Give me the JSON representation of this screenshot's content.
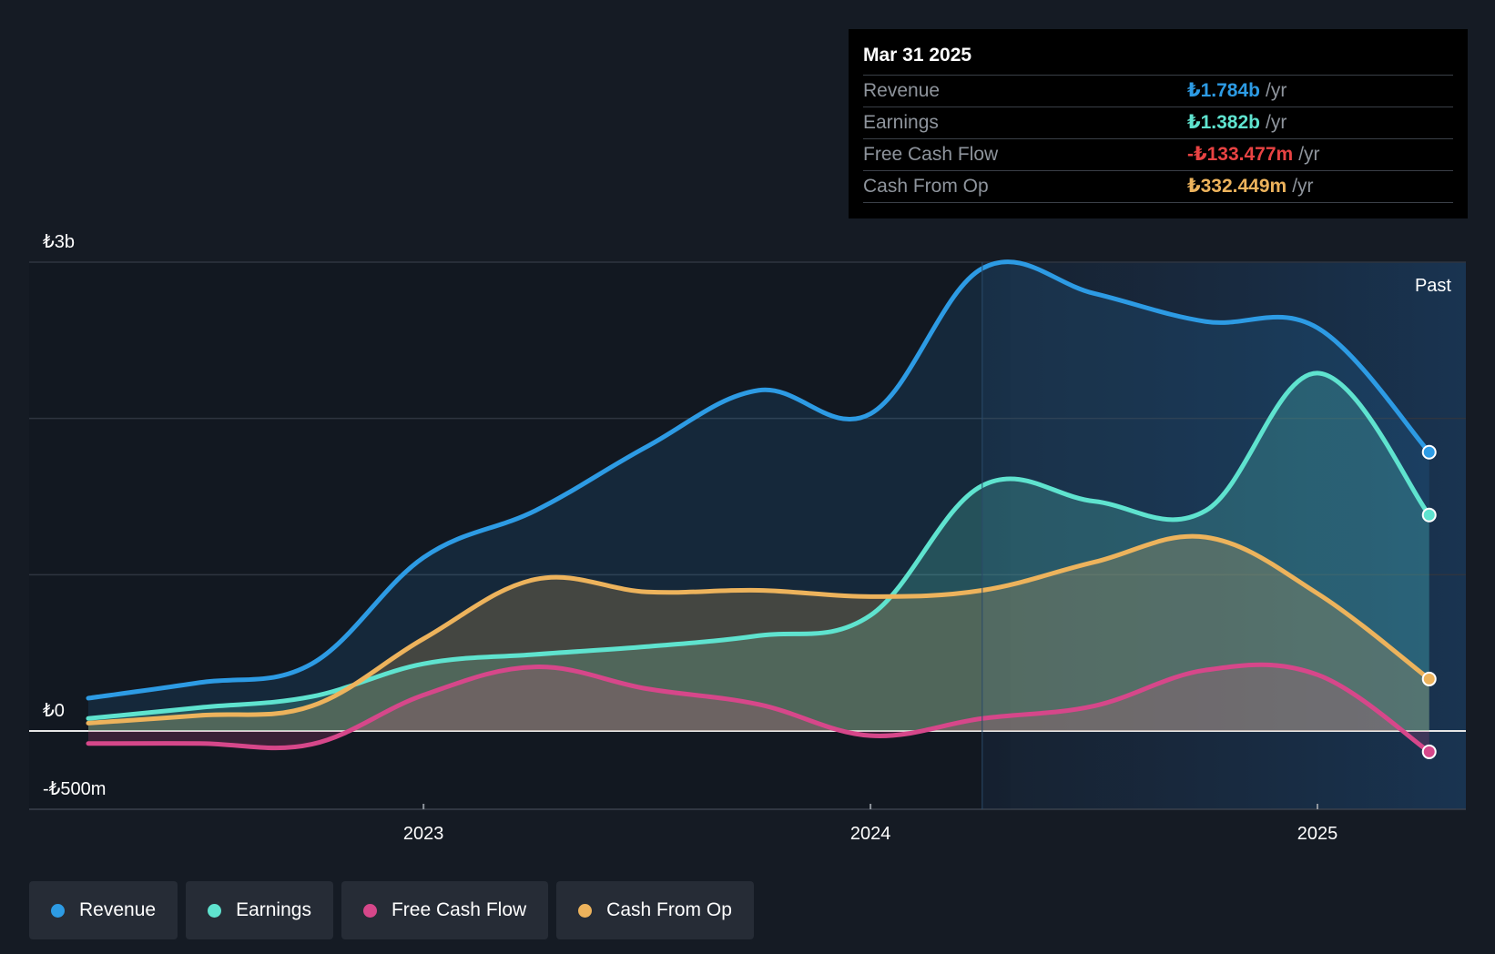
{
  "tooltip": {
    "date": "Mar 31 2025",
    "rows": [
      {
        "label": "Revenue",
        "value": "₺1.784b",
        "unit": "/yr",
        "color": "#2d9be4"
      },
      {
        "label": "Earnings",
        "value": "₺1.382b",
        "unit": "/yr",
        "color": "#5fe3cf"
      },
      {
        "label": "Free Cash Flow",
        "value": "-₺133.477m",
        "unit": "/yr",
        "color": "#e84343"
      },
      {
        "label": "Cash From Op",
        "value": "₺332.449m",
        "unit": "/yr",
        "color": "#edb35c"
      }
    ]
  },
  "chart_data": {
    "type": "area",
    "x_unit": "year",
    "y_unit": "TRY millions",
    "xlim": [
      2022.17,
      2025.25
    ],
    "ylim": [
      -500,
      3000
    ],
    "y_tick_labels": [
      {
        "value": 3000,
        "label": "₺3b"
      },
      {
        "value": 0,
        "label": "₺0"
      },
      {
        "value": -500,
        "label": "-₺500m"
      }
    ],
    "x_tick_labels": [
      {
        "value": 2023,
        "label": "2023"
      },
      {
        "value": 2024,
        "label": "2024"
      },
      {
        "value": 2025,
        "label": "2025"
      }
    ],
    "gridlines": [
      3000,
      2000,
      1000,
      0
    ],
    "past_start": 2024.25,
    "past_label": "Past",
    "series": [
      {
        "name": "Revenue",
        "color": "#2d9be4",
        "points": [
          [
            2022.25,
            210
          ],
          [
            2022.5,
            310
          ],
          [
            2022.75,
            430
          ],
          [
            2023.0,
            1110
          ],
          [
            2023.25,
            1410
          ],
          [
            2023.5,
            1820
          ],
          [
            2023.75,
            2180
          ],
          [
            2024.0,
            2030
          ],
          [
            2024.25,
            2960
          ],
          [
            2024.5,
            2800
          ],
          [
            2024.75,
            2620
          ],
          [
            2025.0,
            2580
          ],
          [
            2025.25,
            1784
          ]
        ]
      },
      {
        "name": "Earnings",
        "color": "#5fe3cf",
        "points": [
          [
            2022.25,
            80
          ],
          [
            2022.5,
            150
          ],
          [
            2022.75,
            220
          ],
          [
            2023.0,
            430
          ],
          [
            2023.25,
            490
          ],
          [
            2023.5,
            540
          ],
          [
            2023.75,
            610
          ],
          [
            2024.0,
            740
          ],
          [
            2024.25,
            1570
          ],
          [
            2024.5,
            1470
          ],
          [
            2024.75,
            1410
          ],
          [
            2025.0,
            2290
          ],
          [
            2025.25,
            1382
          ]
        ]
      },
      {
        "name": "Free Cash Flow",
        "color": "#d6478a",
        "points": [
          [
            2022.25,
            -80
          ],
          [
            2022.5,
            -80
          ],
          [
            2022.75,
            -85
          ],
          [
            2023.0,
            230
          ],
          [
            2023.25,
            410
          ],
          [
            2023.5,
            270
          ],
          [
            2023.75,
            170
          ],
          [
            2024.0,
            -30
          ],
          [
            2024.25,
            80
          ],
          [
            2024.5,
            160
          ],
          [
            2024.75,
            390
          ],
          [
            2025.0,
            360
          ],
          [
            2025.25,
            -133.477
          ]
        ]
      },
      {
        "name": "Cash From Op",
        "color": "#edb35c",
        "points": [
          [
            2022.25,
            50
          ],
          [
            2022.5,
            100
          ],
          [
            2022.75,
            160
          ],
          [
            2023.0,
            590
          ],
          [
            2023.25,
            970
          ],
          [
            2023.5,
            890
          ],
          [
            2023.75,
            900
          ],
          [
            2024.0,
            860
          ],
          [
            2024.25,
            900
          ],
          [
            2024.5,
            1080
          ],
          [
            2024.75,
            1240
          ],
          [
            2025.0,
            880
          ],
          [
            2025.25,
            332.449
          ]
        ]
      }
    ]
  },
  "legend": [
    {
      "label": "Revenue",
      "color": "#2d9be4"
    },
    {
      "label": "Earnings",
      "color": "#5fe3cf"
    },
    {
      "label": "Free Cash Flow",
      "color": "#d6478a"
    },
    {
      "label": "Cash From Op",
      "color": "#edb35c"
    }
  ]
}
